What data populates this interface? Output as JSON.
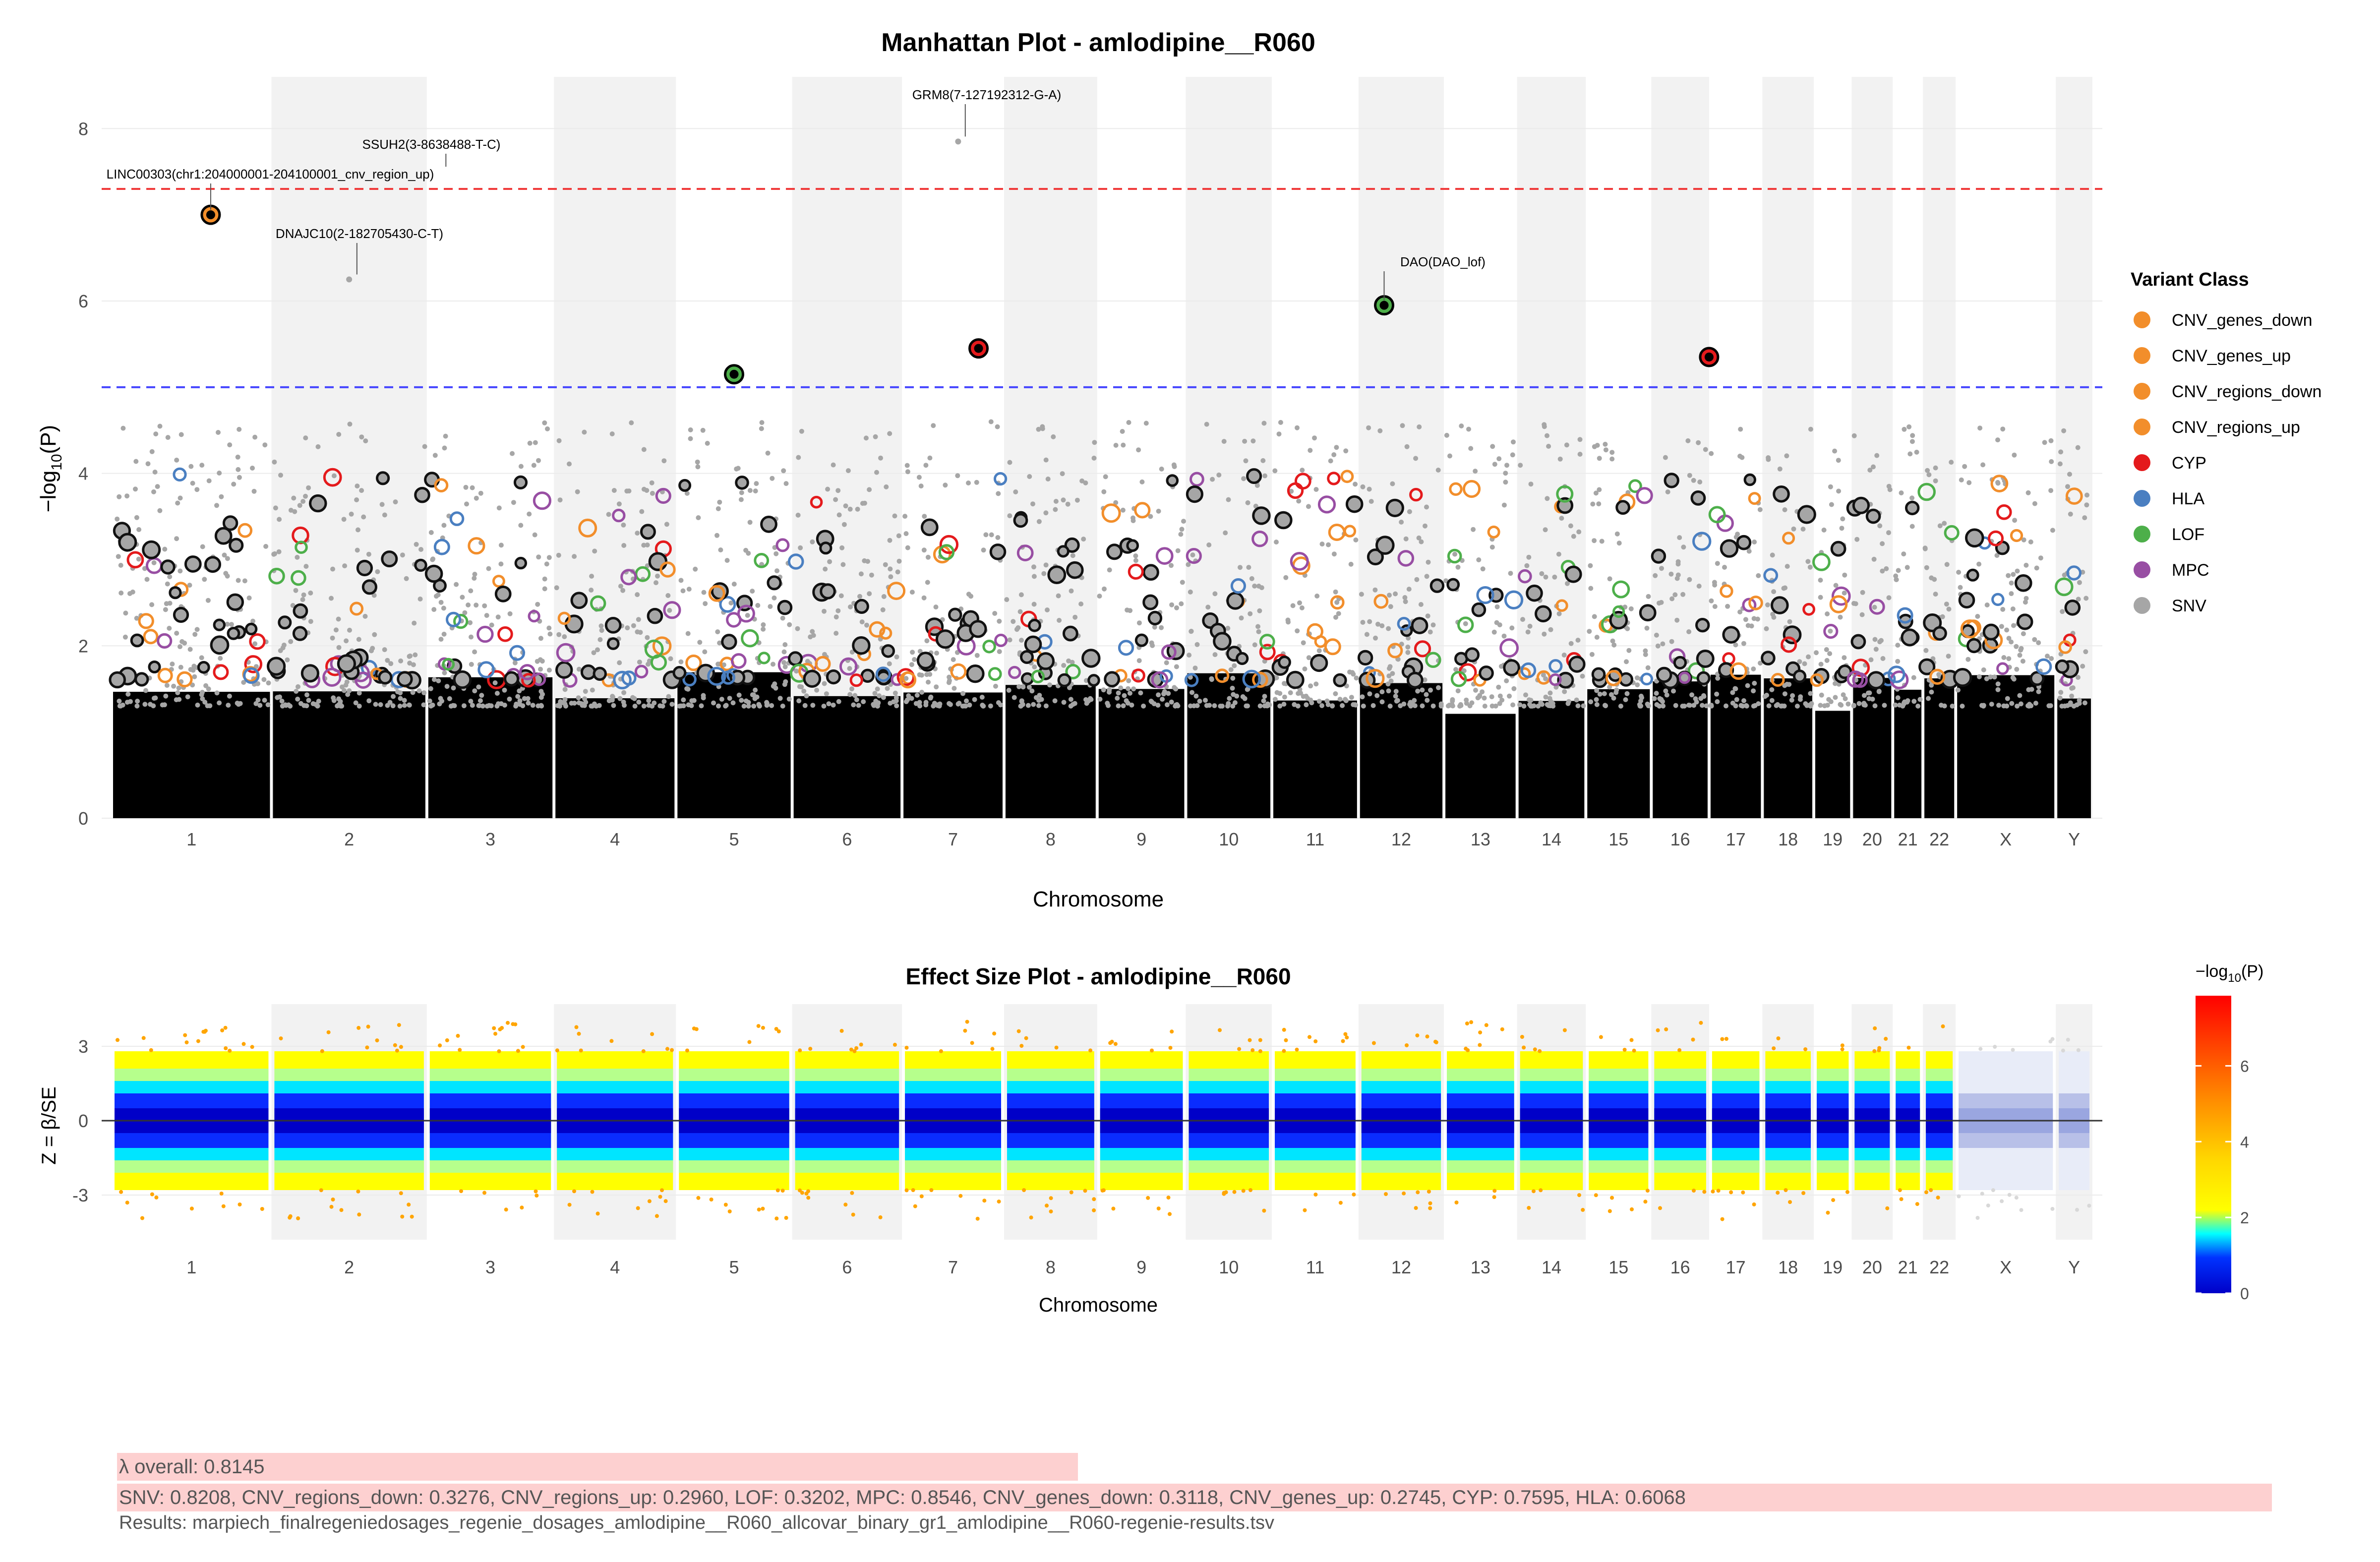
{
  "chart_data": [
    {
      "type": "scatter",
      "subtype": "manhattan",
      "title": "Manhattan Plot - amlodipine__R060",
      "xlabel": "Chromosome",
      "ylabel": "−log₁₀(P)",
      "ylabel_main": "−log",
      "ylabel_sub": "10",
      "ylabel_tail": "(P)",
      "ylim": [
        0,
        8.6
      ],
      "yticks": [
        "0",
        "2",
        "4",
        "6",
        "8"
      ],
      "chromosomes": [
        "1",
        "2",
        "3",
        "4",
        "5",
        "6",
        "7",
        "8",
        "9",
        "10",
        "11",
        "12",
        "13",
        "14",
        "15",
        "16",
        "17",
        "18",
        "19",
        "20",
        "21",
        "22",
        "X",
        "Y"
      ],
      "genome_wide_threshold": 7.3,
      "suggestive_threshold": 5.0,
      "legend_title": "Variant Class",
      "legend": [
        {
          "label": "CNV_genes_down",
          "color": "#f28e2b"
        },
        {
          "label": "CNV_genes_up",
          "color": "#f28e2b"
        },
        {
          "label": "CNV_regions_down",
          "color": "#f28e2b"
        },
        {
          "label": "CNV_regions_up",
          "color": "#f28e2b"
        },
        {
          "label": "CYP",
          "color": "#e41a1c"
        },
        {
          "label": "HLA",
          "color": "#4a7fc1"
        },
        {
          "label": "LOF",
          "color": "#4daf4a"
        },
        {
          "label": "MPC",
          "color": "#984ea3"
        },
        {
          "label": "SNV",
          "color": "#a6a6a6"
        }
      ],
      "annotations": [
        {
          "label": "GRM8(7-127192312-G-A)",
          "chr": "7",
          "value": 7.85
        },
        {
          "label": "SSUH2(3-8638488-T-C)",
          "chr": "3",
          "value": 7.5
        },
        {
          "label": "LINC00303(chr1:204000001-204100001_cnv_region_up)",
          "chr": "1",
          "value": 7.0
        },
        {
          "label": "DNAJC10(2-182705430-C-T)",
          "chr": "2",
          "value": 6.25
        },
        {
          "label": "DAO(DAO_lof)",
          "chr": "12",
          "value": 5.95
        }
      ],
      "top_hits": [
        {
          "chr": "1",
          "value": 7.0,
          "class": "CNV_regions_up"
        },
        {
          "chr": "7",
          "value": 7.85,
          "class": "SNV"
        },
        {
          "chr": "12",
          "value": 5.95,
          "class": "LOF"
        },
        {
          "chr": "2",
          "value": 6.25,
          "class": "SNV"
        },
        {
          "chr": "17",
          "value": 5.35,
          "class": "CYP"
        },
        {
          "chr": "7",
          "value": 5.45,
          "class": "CYP"
        },
        {
          "chr": "5",
          "value": 5.15,
          "class": "LOF"
        }
      ]
    },
    {
      "type": "scatter",
      "subtype": "effect_size",
      "title": "Effect Size Plot - amlodipine__R060",
      "xlabel": "Chromosome",
      "ylabel": "Z = β/SE",
      "ylim": [
        -4.8,
        4.7
      ],
      "yticks": [
        "-3",
        "0",
        "3"
      ],
      "chromosomes": [
        "1",
        "2",
        "3",
        "4",
        "5",
        "6",
        "7",
        "8",
        "9",
        "10",
        "11",
        "12",
        "13",
        "14",
        "15",
        "16",
        "17",
        "18",
        "19",
        "20",
        "21",
        "22",
        "X",
        "Y"
      ],
      "colorbar_title": "−log₁₀(P)",
      "colorbar_title_main": "−log",
      "colorbar_title_sub": "10",
      "colorbar_title_tail": "(P)",
      "colorbar_range": [
        0,
        7.85
      ],
      "colorbar_ticks": [
        "0",
        "2",
        "4",
        "6"
      ]
    }
  ],
  "footer": {
    "lambda_overall": "λ overall: 0.8145",
    "lambda_by_class": "SNV: 0.8208, CNV_regions_down: 0.3276, CNV_regions_up: 0.2960, LOF: 0.3202, MPC: 0.8546, CNV_genes_down: 0.3118, CNV_genes_up: 0.2745, CYP: 0.7595, HLA: 0.6068",
    "results_file": "Results: marpiech_finalregeniedosages_regenie_dosages_amlodipine__R060_allcovar_binary_gr1_amlodipine__R060-regenie-results.tsv"
  }
}
